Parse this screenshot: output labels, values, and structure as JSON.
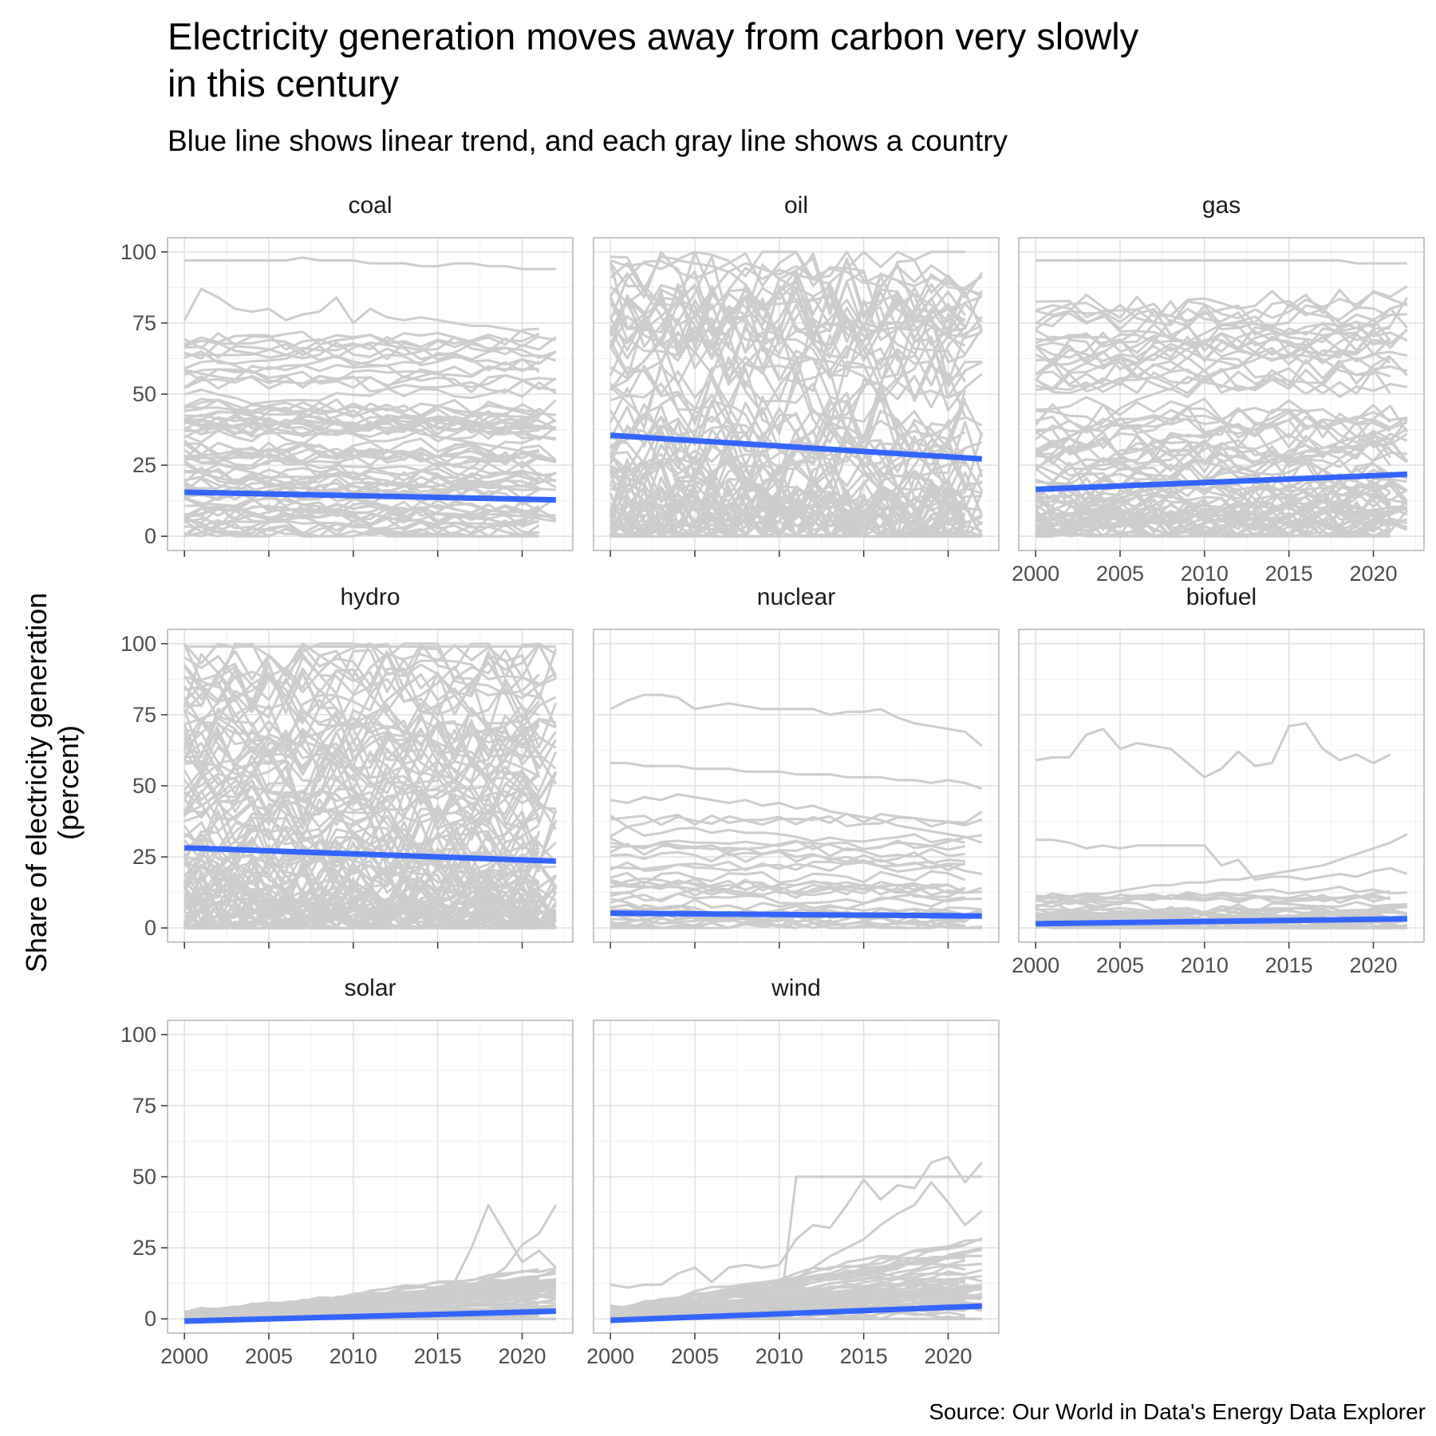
{
  "title_line1": "Electricity generation moves away from carbon very slowly",
  "title_line2": "in this century",
  "subtitle": "Blue line shows linear trend, and each gray line shows a country",
  "ylabel_line1": "Share of electricity generation",
  "ylabel_line2": "(percent)",
  "caption": "Source: Our World in Data's Energy Data Explorer",
  "colors": {
    "country_line": "#cccccc",
    "trend_line": "#3366ff",
    "grid_major": "#e0e0e0",
    "grid_minor": "#f0f0f0",
    "panel_border": "#b3b3b3"
  },
  "chart_data": {
    "type": "line",
    "facet_layout": "3 columns, 3 rows",
    "x_ticks": [
      2000,
      2005,
      2010,
      2015,
      2020
    ],
    "y_ticks": [
      0,
      25,
      50,
      75,
      100
    ],
    "xlim": [
      1999,
      2023
    ],
    "ylim": [
      -5,
      105
    ],
    "panels": [
      {
        "name": "coal",
        "trend": [
          [
            2000,
            15.5
          ],
          [
            2022,
            12.8
          ]
        ],
        "x_axis_labels": false
      },
      {
        "name": "oil",
        "trend": [
          [
            2000,
            35.5
          ],
          [
            2022,
            27.2
          ]
        ],
        "x_axis_labels": false
      },
      {
        "name": "gas",
        "trend": [
          [
            2000,
            16.5
          ],
          [
            2022,
            21.8
          ]
        ],
        "x_axis_labels": true
      },
      {
        "name": "hydro",
        "trend": [
          [
            2000,
            28.2
          ],
          [
            2022,
            23.5
          ]
        ],
        "x_axis_labels": false
      },
      {
        "name": "nuclear",
        "trend": [
          [
            2000,
            5.2
          ],
          [
            2022,
            4.2
          ]
        ],
        "x_axis_labels": false
      },
      {
        "name": "biofuel",
        "trend": [
          [
            2000,
            1.5
          ],
          [
            2022,
            3.2
          ]
        ],
        "x_axis_labels": true
      },
      {
        "name": "solar",
        "trend": [
          [
            2000,
            -0.8
          ],
          [
            2022,
            2.7
          ]
        ],
        "x_axis_labels": true
      },
      {
        "name": "wind",
        "trend": [
          [
            2000,
            -0.5
          ],
          [
            2022,
            4.5
          ]
        ],
        "x_axis_labels": true
      }
    ],
    "highlighted_countries": {
      "coal": [
        [
          97,
          97,
          97,
          97,
          97,
          97,
          97,
          98,
          97,
          97,
          97,
          96,
          96,
          96,
          95,
          95,
          96,
          96,
          95,
          95,
          94,
          94,
          94
        ],
        [
          76,
          87,
          84,
          80,
          79,
          80,
          76,
          78,
          79,
          84,
          75,
          80,
          77,
          76,
          77,
          76,
          75,
          74,
          74,
          73,
          72,
          70,
          69
        ],
        [
          45,
          47,
          48,
          46,
          44,
          46,
          47,
          45,
          43,
          44,
          42,
          44,
          45,
          43,
          41,
          42,
          40,
          39,
          38,
          37,
          36,
          35,
          34
        ],
        [
          38,
          36,
          37,
          39,
          40,
          38,
          37,
          36,
          38,
          37,
          36,
          35,
          37,
          38,
          36,
          35,
          34,
          33,
          32,
          31,
          30,
          28,
          27
        ]
      ],
      "oil": [
        [
          97,
          95,
          96,
          94,
          97,
          96,
          95,
          93,
          96,
          94,
          92,
          95,
          91,
          94,
          93,
          89,
          92,
          90,
          88,
          91,
          89,
          87,
          85
        ],
        [
          40,
          52,
          38,
          61,
          44,
          35,
          57,
          42,
          30,
          49,
          36,
          58,
          41,
          33,
          47,
          29,
          52,
          38,
          44,
          35,
          27,
          31,
          33
        ],
        [
          8,
          15,
          22,
          12,
          18,
          9,
          14,
          20,
          11,
          16,
          7,
          13,
          19,
          10,
          15,
          8,
          12,
          17,
          9,
          14,
          11,
          10,
          9
        ]
      ],
      "gas": [
        [
          97,
          97,
          97,
          97,
          97,
          97,
          97,
          97,
          97,
          97,
          97,
          97,
          97,
          97,
          97,
          97,
          97,
          97,
          97,
          96,
          96,
          96,
          96
        ],
        [
          30,
          33,
          35,
          38,
          40,
          45,
          48,
          50,
          52,
          49,
          55,
          58,
          60,
          62,
          65,
          63,
          67,
          70,
          72,
          69,
          71,
          74,
          84
        ],
        [
          55,
          52,
          58,
          61,
          59,
          63,
          60,
          64,
          62,
          66,
          68,
          65,
          70,
          72,
          69,
          73,
          71,
          75,
          74,
          78,
          76,
          80,
          82
        ],
        [
          5,
          6,
          8,
          9,
          10,
          12,
          14,
          15,
          17,
          18,
          20,
          22,
          23,
          25,
          27,
          28,
          30,
          31,
          33,
          35,
          36,
          38,
          40
        ]
      ],
      "hydro": [
        [
          99,
          99,
          99,
          99,
          99,
          99,
          99,
          99,
          99,
          99,
          99,
          99,
          99,
          99,
          99,
          99,
          99,
          99,
          99,
          99,
          99,
          99,
          99
        ],
        [
          85,
          78,
          90,
          82,
          76,
          88,
          80,
          72,
          84,
          77,
          70,
          82,
          75,
          68,
          79,
          73,
          66,
          77,
          70,
          64,
          72,
          61,
          56
        ],
        [
          60,
          65,
          55,
          70,
          62,
          58,
          68,
          54,
          64,
          59,
          52,
          61,
          57,
          50,
          63,
          55,
          48,
          58,
          53,
          46,
          55,
          44,
          40
        ]
      ],
      "nuclear": [
        [
          77,
          80,
          82,
          82,
          81,
          77,
          78,
          79,
          78,
          77,
          77,
          77,
          77,
          75,
          76,
          76,
          77,
          74,
          72,
          71,
          70,
          69,
          64
        ],
        [
          58,
          58,
          57,
          57,
          57,
          56,
          56,
          56,
          55,
          55,
          55,
          54,
          54,
          54,
          53,
          53,
          53,
          52,
          52,
          51,
          52,
          51,
          49
        ],
        [
          45,
          44,
          46,
          45,
          47,
          46,
          45,
          44,
          45,
          43,
          44,
          42,
          43,
          41,
          40,
          39,
          38,
          36,
          35,
          34,
          33,
          32,
          30
        ],
        [
          30,
          29,
          28,
          30,
          29,
          28,
          29,
          27,
          28,
          26,
          27,
          25,
          26,
          24,
          25,
          23,
          24,
          22,
          23,
          21,
          22,
          20,
          19
        ]
      ],
      "biofuel": [
        [
          59,
          60,
          60,
          68,
          70,
          63,
          65,
          64,
          63,
          58,
          53,
          56,
          62,
          57,
          58,
          71,
          72,
          63,
          59,
          61,
          58,
          61,
          null
        ],
        [
          31,
          31,
          30,
          28,
          29,
          28,
          29,
          29,
          29,
          29,
          29,
          22,
          24,
          17,
          18,
          18,
          17,
          18,
          19,
          18,
          20,
          21,
          19
        ],
        [
          10,
          11,
          11,
          12,
          12,
          13,
          14,
          15,
          15,
          16,
          16,
          17,
          17,
          18,
          19,
          20,
          21,
          22,
          24,
          26,
          28,
          30,
          33
        ]
      ],
      "solar": [
        [
          0,
          0,
          0,
          0,
          0,
          0,
          0,
          0,
          0,
          0,
          1,
          2,
          3,
          5,
          7,
          9,
          13,
          25,
          40,
          30,
          20,
          24,
          18
        ],
        [
          0,
          0,
          0,
          0,
          0,
          0,
          0,
          0,
          0,
          0,
          0,
          1,
          1,
          2,
          3,
          4,
          6,
          10,
          14,
          18,
          26,
          30,
          40
        ],
        [
          0,
          0,
          0,
          0,
          0,
          0,
          0,
          0,
          1,
          1,
          2,
          3,
          4,
          5,
          6,
          7,
          8,
          10,
          11,
          12,
          14,
          15,
          17
        ]
      ],
      "wind": [
        [
          12,
          11,
          12,
          12,
          16,
          18,
          13,
          18,
          19,
          18,
          19,
          28,
          33,
          32,
          40,
          49,
          42,
          47,
          46,
          55,
          57,
          48,
          55
        ],
        [
          0,
          0,
          0,
          0,
          0,
          0,
          0,
          0,
          0,
          0,
          0,
          50,
          50,
          50,
          50,
          50,
          50,
          50,
          50,
          50,
          50,
          50,
          50
        ],
        [
          1,
          2,
          3,
          4,
          5,
          6,
          7,
          8,
          9,
          10,
          12,
          14,
          18,
          22,
          25,
          28,
          33,
          37,
          40,
          48,
          41,
          33,
          38
        ]
      ]
    }
  }
}
